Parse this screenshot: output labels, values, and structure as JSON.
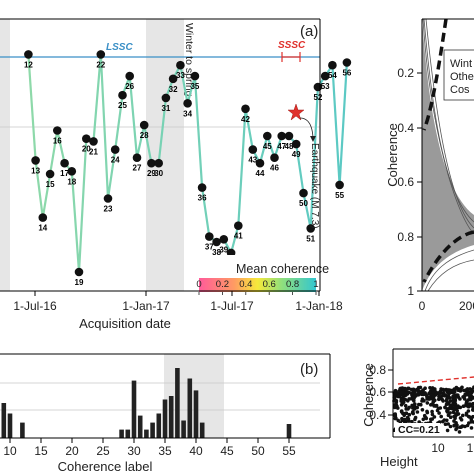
{
  "chart_data": [
    {
      "panel": "(a)",
      "type": "line",
      "xlabel": "Acquisition date",
      "x_tick_labels": [
        "1-Jul-16",
        "1-Jan-17",
        "1-Jul-17",
        "1-Jan-18"
      ],
      "ylim": [
        1.0,
        0.0
      ],
      "shaded_label": "Winter to spring",
      "lssc_label": "LSSC",
      "sssc_label": "SSSC",
      "earthquake_label": "Earthquake (M 7.3)",
      "colorbar_title": "Mean coherence",
      "colorbar_ticks": [
        "0",
        "0.2",
        "0.4",
        "0.6",
        "0.8",
        "1"
      ],
      "colors": {
        "lssc": "#3a8fc6",
        "sssc": "#e0312c",
        "shade": "#e6e6e6",
        "point_labels": "#3a78c2"
      },
      "series": [
        {
          "values": [
            {
              "label": "12",
              "date": "2016-06-20",
              "value": 0.13
            },
            {
              "label": "13",
              "date": "2016-07-02",
              "value": 0.52
            },
            {
              "label": "14",
              "date": "2016-07-14",
              "value": 0.73
            },
            {
              "label": "15",
              "date": "2016-07-26",
              "value": 0.57
            },
            {
              "label": "16",
              "date": "2016-08-07",
              "value": 0.41
            },
            {
              "label": "17",
              "date": "2016-08-19",
              "value": 0.53
            },
            {
              "label": "18",
              "date": "2016-08-31",
              "value": 0.56
            },
            {
              "label": "19",
              "date": "2016-09-12",
              "value": 0.93
            },
            {
              "label": "20",
              "date": "2016-09-24",
              "value": 0.44
            },
            {
              "label": "21",
              "date": "2016-10-06",
              "value": 0.45
            },
            {
              "label": "22",
              "date": "2016-10-18",
              "value": 0.13
            },
            {
              "label": "23",
              "date": "2016-10-30",
              "value": 0.66
            },
            {
              "label": "24",
              "date": "2016-11-11",
              "value": 0.48
            },
            {
              "label": "25",
              "date": "2016-11-23",
              "value": 0.28
            },
            {
              "label": "26",
              "date": "2016-12-05",
              "value": 0.21
            },
            {
              "label": "27",
              "date": "2016-12-17",
              "value": 0.51
            },
            {
              "label": "28",
              "date": "2016-12-29",
              "value": 0.39
            },
            {
              "label": "29",
              "date": "2017-01-10",
              "value": 0.53
            },
            {
              "label": "30",
              "date": "2017-01-22",
              "value": 0.53
            },
            {
              "label": "31",
              "date": "2017-02-03",
              "value": 0.29
            },
            {
              "label": "32",
              "date": "2017-02-15",
              "value": 0.22
            },
            {
              "label": "33",
              "date": "2017-02-27",
              "value": 0.17
            },
            {
              "label": "34",
              "date": "2017-03-11",
              "value": 0.31
            },
            {
              "label": "35",
              "date": "2017-03-23",
              "value": 0.21
            },
            {
              "label": "36",
              "date": "2017-04-04",
              "value": 0.62
            },
            {
              "label": "37",
              "date": "2017-04-16",
              "value": 0.8
            },
            {
              "label": "38",
              "date": "2017-04-28",
              "value": 0.82
            },
            {
              "label": "39",
              "date": "2017-05-10",
              "value": 0.81
            },
            {
              "label": "40",
              "date": "2017-05-22",
              "value": 0.86
            },
            {
              "label": "41",
              "date": "2017-06-03",
              "value": 0.76
            },
            {
              "label": "42",
              "date": "2017-06-15",
              "value": 0.33
            },
            {
              "label": "43",
              "date": "2017-06-27",
              "value": 0.48
            },
            {
              "label": "44",
              "date": "2017-07-09",
              "value": 0.53
            },
            {
              "label": "45",
              "date": "2017-07-21",
              "value": 0.43
            },
            {
              "label": "46",
              "date": "2017-08-02",
              "value": 0.51
            },
            {
              "label": "47",
              "date": "2017-08-14",
              "value": 0.43
            },
            {
              "label": "48",
              "date": "2017-08-26",
              "value": 0.43
            },
            {
              "label": "49",
              "date": "2017-09-07",
              "value": 0.46
            },
            {
              "label": "50",
              "date": "2017-09-19",
              "value": 0.64
            },
            {
              "label": "51",
              "date": "2017-10-01",
              "value": 0.77
            },
            {
              "label": "52",
              "date": "2017-10-13",
              "value": 0.25
            },
            {
              "label": "53",
              "date": "2017-10-25",
              "value": 0.21
            },
            {
              "label": "54",
              "date": "2017-11-06",
              "value": 0.17
            },
            {
              "label": "55",
              "date": "2017-11-18",
              "value": 0.61
            },
            {
              "label": "56",
              "date": "2017-11-30",
              "value": 0.16
            }
          ]
        }
      ]
    },
    {
      "panel": "(b)",
      "type": "bar",
      "xlabel": "Coherence label",
      "x_tick_labels": [
        "10",
        "15",
        "20",
        "25",
        "30",
        "35",
        "40",
        "45",
        "50",
        "55"
      ],
      "values": [
        {
          "x": 9,
          "value": 0.5
        },
        {
          "x": 10,
          "value": 0.35
        },
        {
          "x": 12,
          "value": 0.22
        },
        {
          "x": 28,
          "value": 0.12
        },
        {
          "x": 29,
          "value": 0.12
        },
        {
          "x": 30,
          "value": 0.82
        },
        {
          "x": 31,
          "value": 0.32
        },
        {
          "x": 32,
          "value": 0.12
        },
        {
          "x": 33,
          "value": 0.22
        },
        {
          "x": 34,
          "value": 0.35
        },
        {
          "x": 35,
          "value": 0.55
        },
        {
          "x": 36,
          "value": 0.6
        },
        {
          "x": 37,
          "value": 1.0
        },
        {
          "x": 38,
          "value": 0.25
        },
        {
          "x": 39,
          "value": 0.85
        },
        {
          "x": 40,
          "value": 0.68
        },
        {
          "x": 41,
          "value": 0.22
        },
        {
          "x": 55,
          "value": 0.2
        }
      ]
    },
    {
      "panel": "right-top",
      "type": "line",
      "ylabel": "Coherence",
      "ytick_labels": [
        "0.2",
        "0.4",
        "0.6",
        "0.8",
        "1"
      ],
      "x_tick_labels": [
        "0",
        "200"
      ],
      "legend_entries": [
        "Wint",
        "Othe",
        "Cos"
      ]
    },
    {
      "panel": "right-bottom",
      "type": "scatter",
      "ylabel": "Coherence",
      "xlabel": "Height",
      "ytick_labels": [
        "0.4",
        "0.6",
        "0.8"
      ],
      "x_tick_labels": [
        "10",
        "1"
      ],
      "annotation": "CC=0.21"
    }
  ]
}
